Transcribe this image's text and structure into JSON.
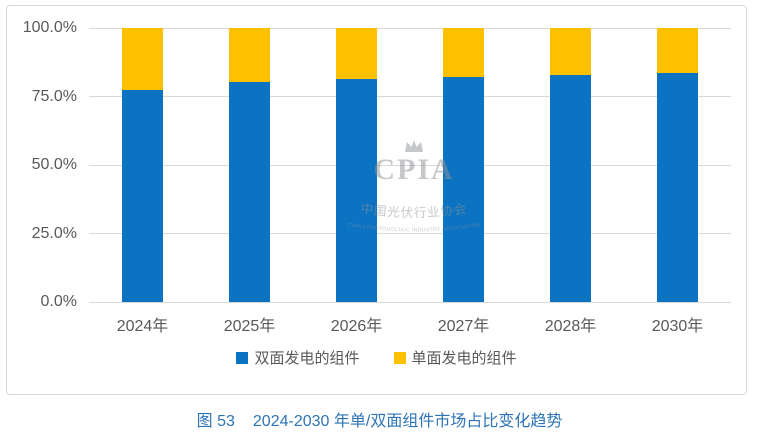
{
  "colors": {
    "bifacial_blue": "#0b73c2",
    "monofacial_gold": "#ffc000",
    "gridline": "#d9d9d9",
    "axis_text": "#595959",
    "caption_blue": "#2e74b5",
    "box_border": "#d9d9d9",
    "watermark_gray": "#8d9196"
  },
  "chart_data": {
    "type": "bar",
    "stacked": true,
    "title": "",
    "xlabel": "",
    "ylabel": "",
    "ylim": [
      0,
      100
    ],
    "grid": true,
    "legend_position": "bottom",
    "yticks_top_to_bottom": [
      "100.0%",
      "75.0%",
      "50.0%",
      "25.0%",
      "0.0%"
    ],
    "categories": [
      "2024年",
      "2025年",
      "2026年",
      "2027年",
      "2028年",
      "2030年"
    ],
    "series": [
      {
        "name": "双面发电的组件",
        "color": "#0b73c2",
        "values": [
          77.3,
          80.3,
          81.5,
          82.2,
          82.8,
          83.5
        ]
      },
      {
        "name": "单面发电的组件",
        "color": "#ffc000",
        "values": [
          22.7,
          19.7,
          18.5,
          17.8,
          17.2,
          16.5
        ]
      }
    ]
  },
  "watermark": {
    "acronym": "CPIA",
    "cn_name": "中国光伏行业协会",
    "en_name": "CHINA PHOTOVOLTAIC INDUSTRY ASSOCIATION"
  },
  "caption": {
    "label": "图 53",
    "text": "2024-2030 年单/双面组件市场占比变化趋势"
  }
}
